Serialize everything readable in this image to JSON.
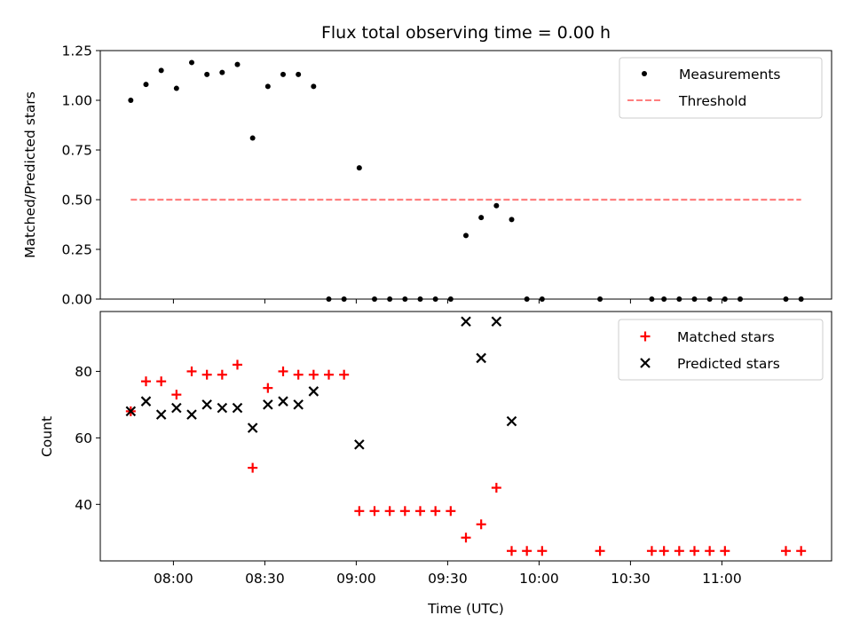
{
  "colors": {
    "measurements": "#000000",
    "threshold": "#ff7f7f",
    "matched": "#ff0000",
    "predicted": "#000000"
  },
  "chart_data": [
    {
      "type": "scatter",
      "title": "Flux total observing time = 0.00 h",
      "xlabel": "",
      "ylabel": "Matched/Predicted stars",
      "xaxis": {
        "type": "time",
        "range": [
          "07:36",
          "11:36"
        ],
        "ticks": [
          "08:00",
          "08:30",
          "09:00",
          "09:30",
          "10:00",
          "10:30",
          "11:00"
        ],
        "ticklabels_visible": false
      },
      "ylim": [
        0,
        1.25
      ],
      "yticks": [
        "0.00",
        "0.25",
        "0.50",
        "0.75",
        "1.00",
        "1.25"
      ],
      "legend": {
        "position": "top-right",
        "entries": [
          "Measurements",
          "Threshold"
        ]
      },
      "series": [
        {
          "name": "Measurements",
          "marker": "dot",
          "points": [
            [
              "07:46",
              1.0
            ],
            [
              "07:51",
              1.08
            ],
            [
              "07:56",
              1.15
            ],
            [
              "08:01",
              1.06
            ],
            [
              "08:06",
              1.19
            ],
            [
              "08:11",
              1.13
            ],
            [
              "08:16",
              1.14
            ],
            [
              "08:21",
              1.18
            ],
            [
              "08:26",
              0.81
            ],
            [
              "08:31",
              1.07
            ],
            [
              "08:36",
              1.13
            ],
            [
              "08:41",
              1.13
            ],
            [
              "08:46",
              1.07
            ],
            [
              "08:51",
              0.0
            ],
            [
              "08:56",
              0.0
            ],
            [
              "09:01",
              0.66
            ],
            [
              "09:06",
              0.0
            ],
            [
              "09:11",
              0.0
            ],
            [
              "09:16",
              0.0
            ],
            [
              "09:21",
              0.0
            ],
            [
              "09:26",
              0.0
            ],
            [
              "09:31",
              0.0
            ],
            [
              "09:36",
              0.32
            ],
            [
              "09:41",
              0.41
            ],
            [
              "09:46",
              0.47
            ],
            [
              "09:51",
              0.4
            ],
            [
              "09:56",
              0.0
            ],
            [
              "10:01",
              0.0
            ],
            [
              "10:20",
              0.0
            ],
            [
              "10:37",
              0.0
            ],
            [
              "10:41",
              0.0
            ],
            [
              "10:46",
              0.0
            ],
            [
              "10:51",
              0.0
            ],
            [
              "10:56",
              0.0
            ],
            [
              "11:01",
              0.0
            ],
            [
              "11:06",
              0.0
            ],
            [
              "11:21",
              0.0
            ],
            [
              "11:26",
              0.0
            ]
          ]
        },
        {
          "name": "Threshold",
          "type": "line",
          "style": "dashed",
          "x": [
            "07:46",
            "11:26"
          ],
          "values": [
            0.5,
            0.5
          ]
        }
      ]
    },
    {
      "type": "scatter",
      "title": "",
      "xlabel": "Time (UTC)",
      "ylabel": "Count",
      "xaxis": {
        "type": "time",
        "range": [
          "07:36",
          "11:36"
        ],
        "ticks": [
          "08:00",
          "08:30",
          "09:00",
          "09:30",
          "10:00",
          "10:30",
          "11:00"
        ],
        "ticklabels_visible": true
      },
      "ylim": [
        23,
        98
      ],
      "yticks": [
        "40",
        "60",
        "80"
      ],
      "legend": {
        "position": "top-right",
        "entries": [
          "Matched stars",
          "Predicted stars"
        ]
      },
      "series": [
        {
          "name": "Matched stars",
          "marker": "plus",
          "points": [
            [
              "07:46",
              68
            ],
            [
              "07:51",
              77
            ],
            [
              "07:56",
              77
            ],
            [
              "08:01",
              73
            ],
            [
              "08:06",
              80
            ],
            [
              "08:11",
              79
            ],
            [
              "08:16",
              79
            ],
            [
              "08:21",
              82
            ],
            [
              "08:26",
              51
            ],
            [
              "08:31",
              75
            ],
            [
              "08:36",
              80
            ],
            [
              "08:41",
              79
            ],
            [
              "08:46",
              79
            ],
            [
              "08:51",
              79
            ],
            [
              "08:56",
              79
            ],
            [
              "09:01",
              38
            ],
            [
              "09:06",
              38
            ],
            [
              "09:11",
              38
            ],
            [
              "09:16",
              38
            ],
            [
              "09:21",
              38
            ],
            [
              "09:26",
              38
            ],
            [
              "09:31",
              38
            ],
            [
              "09:36",
              30
            ],
            [
              "09:41",
              34
            ],
            [
              "09:46",
              45
            ],
            [
              "09:51",
              26
            ],
            [
              "09:56",
              26
            ],
            [
              "10:01",
              26
            ],
            [
              "10:20",
              26
            ],
            [
              "10:37",
              26
            ],
            [
              "10:41",
              26
            ],
            [
              "10:46",
              26
            ],
            [
              "10:51",
              26
            ],
            [
              "10:56",
              26
            ],
            [
              "11:01",
              26
            ],
            [
              "11:21",
              26
            ],
            [
              "11:26",
              26
            ]
          ]
        },
        {
          "name": "Predicted stars",
          "marker": "x",
          "points": [
            [
              "07:46",
              68
            ],
            [
              "07:51",
              71
            ],
            [
              "07:56",
              67
            ],
            [
              "08:01",
              69
            ],
            [
              "08:06",
              67
            ],
            [
              "08:11",
              70
            ],
            [
              "08:16",
              69
            ],
            [
              "08:21",
              69
            ],
            [
              "08:26",
              63
            ],
            [
              "08:31",
              70
            ],
            [
              "08:36",
              71
            ],
            [
              "08:41",
              70
            ],
            [
              "08:46",
              74
            ],
            [
              "09:01",
              58
            ],
            [
              "09:36",
              95
            ],
            [
              "09:41",
              84
            ],
            [
              "09:46",
              95
            ],
            [
              "09:51",
              65
            ]
          ]
        }
      ]
    }
  ]
}
